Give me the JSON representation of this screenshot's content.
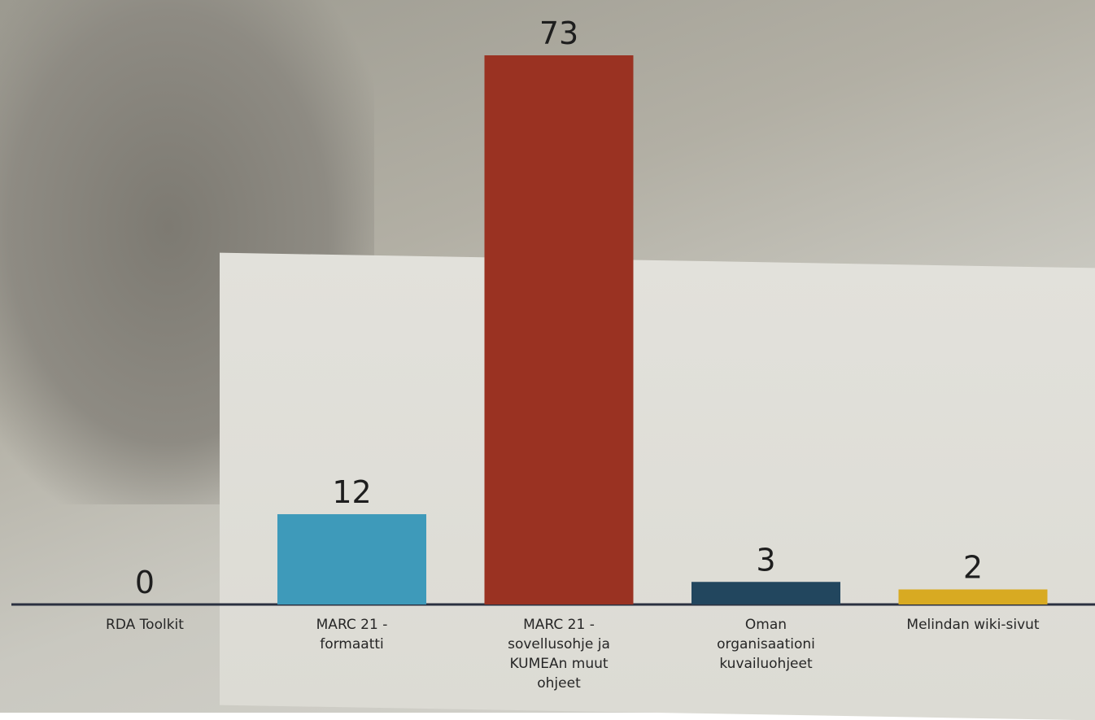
{
  "chart_data": {
    "type": "bar",
    "categories": [
      "RDA Toolkit",
      "MARC 21 - formaatti",
      "MARC 21 - sovellusohje ja KUMEAn muut ohjeet",
      "Oman organisaationi kuvailuohjeet",
      "Melindan wiki-sivut"
    ],
    "values": [
      0,
      12,
      73,
      3,
      2
    ],
    "colors": [
      "#3e9aba",
      "#3e9aba",
      "#9a3222",
      "#22465e",
      "#d8aa22"
    ]
  }
}
